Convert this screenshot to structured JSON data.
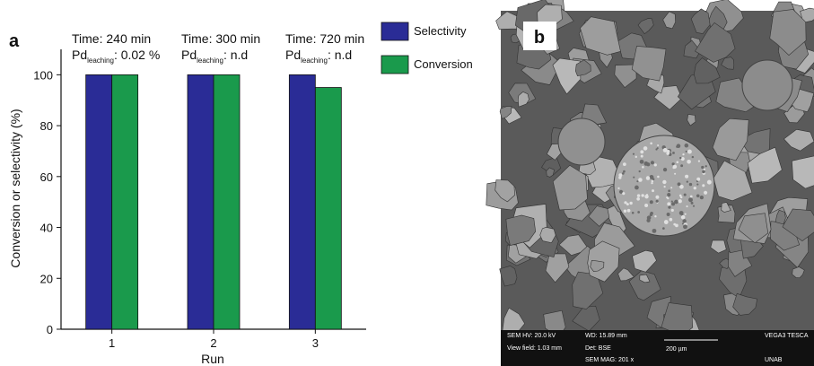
{
  "chart_data": {
    "type": "bar",
    "panel_label": "a",
    "categories": [
      "1",
      "2",
      "3"
    ],
    "series": [
      {
        "name": "Selectivity",
        "color": "#2a2c96",
        "values": [
          100,
          100,
          100
        ]
      },
      {
        "name": "Conversion",
        "color": "#1a9a4c",
        "values": [
          100,
          100,
          95
        ]
      }
    ],
    "x_label": "Run",
    "y_label": "Conversion or selectivity (%)",
    "ylim": [
      0,
      110
    ],
    "yticks": [
      0,
      20,
      40,
      60,
      80,
      100
    ],
    "grid": false,
    "legend_position": "right",
    "annotations": [
      {
        "time": "Time: 240 min",
        "pd": "Pd",
        "sub": "leaching",
        "rest": ": 0.02 %"
      },
      {
        "time": "Time: 300 min",
        "pd": "Pd",
        "sub": "leaching",
        "rest": ": n.d"
      },
      {
        "time": "Time: 720 min",
        "pd": "Pd",
        "sub": "leaching",
        "rest": ": n.d"
      }
    ]
  },
  "image_panel": {
    "label": "b",
    "info": [
      "SEM HV: 20.0 kV",
      "WD: 15.89 mm",
      "200 µm",
      "VEGA3 TESCA",
      "View field: 1.03 mm",
      "Det: BSE",
      "SEM MAG: 201 x",
      "UNAB"
    ]
  }
}
